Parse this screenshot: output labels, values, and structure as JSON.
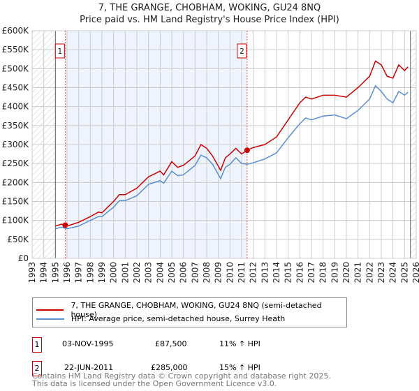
{
  "chart_data": {
    "type": "line",
    "title": "7, THE GRANGE, CHOBHAM, WOKING, GU24 8NQ",
    "subtitle": "Price paid vs. HM Land Registry's House Price Index (HPI)",
    "xlim": [
      1993,
      2026
    ],
    "ylim": [
      0,
      600000
    ],
    "y_ticks": [
      "£0",
      "£50K",
      "£100K",
      "£150K",
      "£200K",
      "£250K",
      "£300K",
      "£350K",
      "£400K",
      "£450K",
      "£500K",
      "£550K",
      "£600K"
    ],
    "x_ticks": [
      "1993",
      "1994",
      "1995",
      "1996",
      "1997",
      "1998",
      "1999",
      "2000",
      "2001",
      "2002",
      "2003",
      "2004",
      "2005",
      "2006",
      "2007",
      "2008",
      "2009",
      "2010",
      "2011",
      "2012",
      "2013",
      "2014",
      "2015",
      "2016",
      "2017",
      "2018",
      "2019",
      "2020",
      "2021",
      "2022",
      "2023",
      "2024",
      "2025",
      "2026"
    ],
    "grid": true,
    "series": [
      {
        "name": "7, THE GRANGE, CHOBHAM, WOKING, GU24 8NQ (semi-detached house)",
        "color": "#cc0000",
        "x": [
          1995,
          1995.5,
          1996,
          1997,
          1998,
          1998.7,
          1999,
          2000,
          2000.5,
          2001,
          2002,
          2003,
          2004,
          2004.3,
          2005,
          2005.5,
          2006,
          2007,
          2007.5,
          2008,
          2008.5,
          2009.2,
          2009.6,
          2010,
          2010.5,
          2011,
          2011.47,
          2012,
          2013,
          2014,
          2015,
          2016,
          2016.5,
          2017,
          2018,
          2019,
          2020,
          2021,
          2022,
          2022.5,
          2023,
          2023.5,
          2024,
          2024.5,
          2025,
          2025.3
        ],
        "y": [
          85000,
          90000,
          85000,
          95000,
          110000,
          122000,
          120000,
          150000,
          168000,
          168000,
          185000,
          215000,
          230000,
          220000,
          255000,
          240000,
          245000,
          270000,
          300000,
          290000,
          270000,
          232000,
          265000,
          275000,
          290000,
          275000,
          285000,
          292000,
          300000,
          320000,
          365000,
          410000,
          425000,
          420000,
          430000,
          430000,
          425000,
          450000,
          480000,
          520000,
          510000,
          480000,
          475000,
          510000,
          495000,
          505000
        ]
      },
      {
        "name": "HPI: Average price, semi-detached house, Surrey Heath",
        "color": "#5b8fd0",
        "x": [
          1995,
          1995.5,
          1996,
          1997,
          1998,
          1998.7,
          1999,
          2000,
          2000.5,
          2001,
          2002,
          2003,
          2004,
          2004.3,
          2005,
          2005.5,
          2006,
          2007,
          2007.5,
          2008,
          2008.5,
          2009.2,
          2009.6,
          2010,
          2010.5,
          2011,
          2011.47,
          2012,
          2013,
          2014,
          2015,
          2016,
          2016.5,
          2017,
          2018,
          2019,
          2020,
          2021,
          2022,
          2022.5,
          2023,
          2023.5,
          2024,
          2024.5,
          2025,
          2025.3
        ],
        "y": [
          78000,
          82000,
          78000,
          85000,
          100000,
          110000,
          110000,
          135000,
          152000,
          152000,
          165000,
          195000,
          205000,
          198000,
          230000,
          218000,
          220000,
          245000,
          272000,
          265000,
          248000,
          210000,
          240000,
          248000,
          265000,
          250000,
          248000,
          252000,
          262000,
          278000,
          318000,
          355000,
          370000,
          365000,
          375000,
          378000,
          368000,
          390000,
          420000,
          455000,
          440000,
          420000,
          410000,
          440000,
          430000,
          438000
        ]
      }
    ],
    "sales": [
      {
        "label": "1",
        "date": "03-NOV-1995",
        "x": 1995.84,
        "price": "£87,500",
        "value": 87500,
        "hpi": "11% ↑ HPI"
      },
      {
        "label": "2",
        "date": "22-JUN-2011",
        "x": 2011.47,
        "price": "£285,000",
        "value": 285000,
        "hpi": "15% ↑ HPI"
      }
    ],
    "shaded_range": [
      1995.84,
      2011.47
    ],
    "hatched_before": 1995,
    "hatched_after": 2025.5
  },
  "footer": {
    "line1": "Contains HM Land Registry data © Crown copyright and database right 2025.",
    "line2": "This data is licensed under the Open Government Licence v3.0."
  }
}
